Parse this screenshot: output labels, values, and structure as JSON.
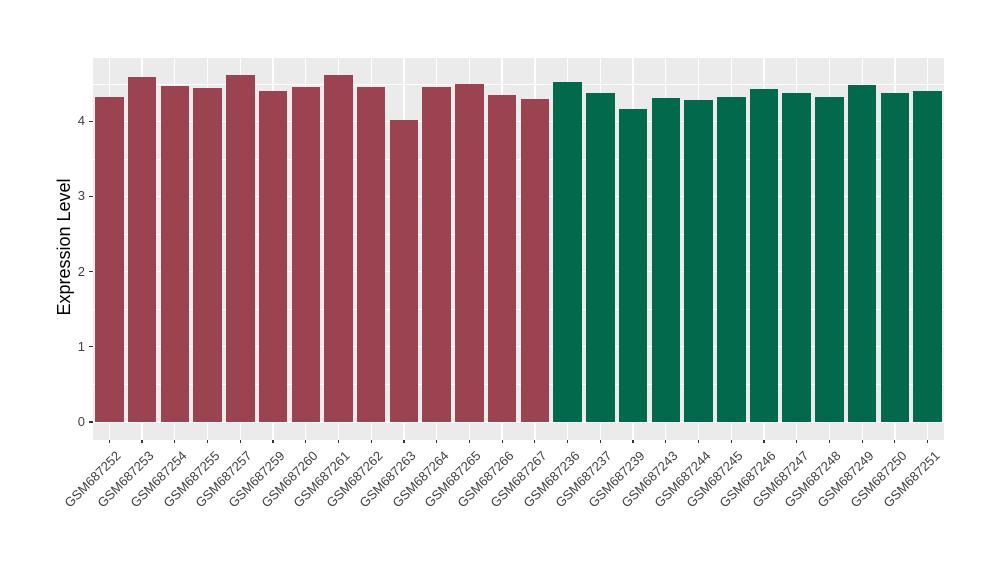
{
  "chart_data": {
    "type": "bar",
    "title": "",
    "xlabel": "",
    "ylabel": "Expression Level",
    "ylim": [
      0,
      4.85
    ],
    "yticks": [
      0,
      1,
      2,
      3,
      4
    ],
    "y_minor_step": 0.5,
    "grid": true,
    "legend_position": "none",
    "panel_background": "#EBEBEB",
    "grid_color": "#FFFFFF",
    "axis_text_color": "#404040",
    "group_colors": {
      "left_group": "#9C4352",
      "right_group": "#02694C"
    },
    "bars": [
      {
        "label": "GSM687252",
        "value": 4.32,
        "group": "left_group"
      },
      {
        "label": "GSM687253",
        "value": 4.59,
        "group": "left_group"
      },
      {
        "label": "GSM687254",
        "value": 4.47,
        "group": "left_group"
      },
      {
        "label": "GSM687255",
        "value": 4.44,
        "group": "left_group"
      },
      {
        "label": "GSM687257",
        "value": 4.62,
        "group": "left_group"
      },
      {
        "label": "GSM687259",
        "value": 4.4,
        "group": "left_group"
      },
      {
        "label": "GSM687260",
        "value": 4.45,
        "group": "left_group"
      },
      {
        "label": "GSM687261",
        "value": 4.61,
        "group": "left_group"
      },
      {
        "label": "GSM687262",
        "value": 4.46,
        "group": "left_group"
      },
      {
        "label": "GSM687263",
        "value": 4.02,
        "group": "left_group"
      },
      {
        "label": "GSM687264",
        "value": 4.46,
        "group": "left_group"
      },
      {
        "label": "GSM687265",
        "value": 4.5,
        "group": "left_group"
      },
      {
        "label": "GSM687266",
        "value": 4.35,
        "group": "left_group"
      },
      {
        "label": "GSM687267",
        "value": 4.29,
        "group": "left_group"
      },
      {
        "label": "GSM687236",
        "value": 4.52,
        "group": "right_group"
      },
      {
        "label": "GSM687237",
        "value": 4.37,
        "group": "right_group"
      },
      {
        "label": "GSM687239",
        "value": 4.16,
        "group": "right_group"
      },
      {
        "label": "GSM687243",
        "value": 4.31,
        "group": "right_group"
      },
      {
        "label": "GSM687244",
        "value": 4.28,
        "group": "right_group"
      },
      {
        "label": "GSM687245",
        "value": 4.32,
        "group": "right_group"
      },
      {
        "label": "GSM687246",
        "value": 4.43,
        "group": "right_group"
      },
      {
        "label": "GSM687247",
        "value": 4.38,
        "group": "right_group"
      },
      {
        "label": "GSM687248",
        "value": 4.32,
        "group": "right_group"
      },
      {
        "label": "GSM687249",
        "value": 4.48,
        "group": "right_group"
      },
      {
        "label": "GSM687250",
        "value": 4.38,
        "group": "right_group"
      },
      {
        "label": "GSM687251",
        "value": 4.4,
        "group": "right_group"
      }
    ]
  }
}
